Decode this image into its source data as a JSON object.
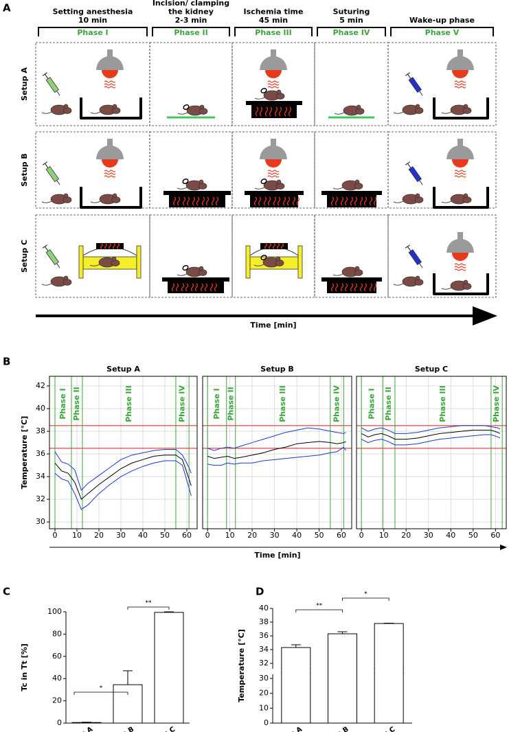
{
  "panel_a": {
    "label": "A",
    "columns": [
      {
        "header": [
          "Setting anesthesia",
          "10 min"
        ],
        "phase": "Phase I"
      },
      {
        "header": [
          "Incision/ clamping",
          "the kidney",
          "2-3 min"
        ],
        "phase": "Phase II"
      },
      {
        "header": [
          "Ischemia time",
          "45 min"
        ],
        "phase": "Phase III"
      },
      {
        "header": [
          "Suturing",
          "5 min"
        ],
        "phase": "Phase IV"
      },
      {
        "header": [
          "Wake-up phase"
        ],
        "phase": "Phase V"
      }
    ],
    "rows": [
      "Setup A",
      "Setup B",
      "Setup C"
    ],
    "time_label": "Time [min]"
  },
  "panel_b": {
    "label": "B",
    "x_label": "Time [min]",
    "y_label": "Temperature [°C]"
  },
  "chart_data": [
    {
      "type": "line",
      "title": "Setup A",
      "x": [
        0,
        3,
        6,
        9,
        12,
        15,
        20,
        25,
        30,
        35,
        40,
        45,
        50,
        55,
        58,
        61,
        62
      ],
      "xlim": [
        -2.5,
        64.7
      ],
      "xticks": [
        0,
        10,
        20,
        30,
        40,
        50,
        60
      ],
      "ylim": [
        29.4,
        42.85
      ],
      "yticks": [
        30,
        32,
        34,
        36,
        38,
        40,
        42
      ],
      "show_ytick_labels": true,
      "grid": true,
      "reference_lines": [
        36.5,
        38.5
      ],
      "reference_color": "#e8322b",
      "phase_lines": [
        0,
        7.5,
        12.5,
        55,
        61
      ],
      "phase_labels": [
        "Phase I",
        "Phase II",
        "Phase III",
        "Phase IV"
      ],
      "phase_color": "#3aa63a",
      "series": [
        {
          "color": "#000000",
          "values": [
            35.2,
            34.5,
            34.3,
            33.5,
            32,
            32.5,
            33.3,
            34,
            34.7,
            35.2,
            35.5,
            35.8,
            35.9,
            35.9,
            35.5,
            33.8,
            33.2
          ]
        },
        {
          "color": "#1a35d6",
          "values": [
            36.2,
            35.3,
            35.1,
            34.6,
            32.8,
            33.4,
            34.1,
            34.8,
            35.5,
            35.9,
            36.1,
            36.3,
            36.4,
            36.4,
            35.9,
            34.8,
            34.3
          ]
        },
        {
          "color": "#1a35d6",
          "values": [
            34.3,
            33.8,
            33.6,
            32.5,
            31.1,
            31.5,
            32.5,
            33.3,
            34,
            34.5,
            34.9,
            35.2,
            35.4,
            35.4,
            35,
            33,
            32.3
          ]
        }
      ]
    },
    {
      "type": "line",
      "title": "Setup B",
      "x": [
        0,
        3,
        6,
        9,
        12,
        15,
        20,
        25,
        30,
        35,
        40,
        45,
        50,
        55,
        58,
        61,
        62
      ],
      "xlim": [
        -2.2,
        64.6
      ],
      "xticks": [
        0,
        10,
        20,
        30,
        40,
        50,
        60
      ],
      "ylim": [
        29.4,
        42.85
      ],
      "yticks": [
        30,
        32,
        34,
        36,
        38,
        40,
        42
      ],
      "show_ytick_labels": false,
      "grid": true,
      "reference_lines": [
        36.5,
        38.5
      ],
      "reference_color": "#e8322b",
      "phase_lines": [
        0,
        8.5,
        12.5,
        55,
        61
      ],
      "phase_labels": [
        "Phase I",
        "Phase II",
        "Phase III",
        "Phase IV"
      ],
      "phase_color": "#3aa63a",
      "series": [
        {
          "color": "#000000",
          "values": [
            35.8,
            35.6,
            35.7,
            35.8,
            35.6,
            35.7,
            35.9,
            36.1,
            36.4,
            36.6,
            36.9,
            37,
            37.1,
            37,
            36.9,
            37,
            37.1
          ]
        },
        {
          "color": "#1a35d6",
          "values": [
            36.5,
            36.3,
            36.5,
            36.6,
            36.5,
            36.7,
            37,
            37.3,
            37.6,
            37.9,
            38.1,
            38.3,
            38.2,
            38,
            37.9,
            37.8,
            37.9
          ]
        },
        {
          "color": "#1a35d6",
          "values": [
            35.1,
            35,
            35,
            35.2,
            35.1,
            35.2,
            35.2,
            35.4,
            35.5,
            35.6,
            35.7,
            35.8,
            35.9,
            36.1,
            36.2,
            36.6,
            36.3
          ]
        }
      ]
    },
    {
      "type": "line",
      "title": "Setup C",
      "x": [
        0,
        3,
        6,
        9,
        12,
        15,
        20,
        25,
        30,
        35,
        40,
        45,
        50,
        55,
        58,
        61,
        62
      ],
      "xlim": [
        -2.2,
        64.8
      ],
      "xticks": [
        0,
        10,
        20,
        30,
        40,
        50,
        60
      ],
      "ylim": [
        29.4,
        42.85
      ],
      "yticks": [
        30,
        32,
        34,
        36,
        38,
        40,
        42
      ],
      "show_ytick_labels": false,
      "grid": true,
      "reference_lines": [
        36.5,
        38.5
      ],
      "reference_color": "#e8322b",
      "phase_lines": [
        0,
        9.5,
        15,
        58,
        63
      ],
      "phase_labels": [
        "Phase I",
        "Phase II",
        "Phase III",
        "Phase IV"
      ],
      "phase_color": "#3aa63a",
      "series": [
        {
          "color": "#000000",
          "values": [
            37.8,
            37.5,
            37.7,
            37.8,
            37.6,
            37.3,
            37.3,
            37.4,
            37.6,
            37.8,
            37.9,
            38,
            38.1,
            38.1,
            38.1,
            37.9,
            37.8
          ]
        },
        {
          "color": "#1a35d6",
          "values": [
            38.3,
            38,
            38.2,
            38.3,
            38.1,
            37.8,
            37.8,
            37.9,
            38.1,
            38.3,
            38.4,
            38.5,
            38.5,
            38.5,
            38.4,
            38.3,
            38.2
          ]
        },
        {
          "color": "#1a35d6",
          "values": [
            37.3,
            37,
            37.2,
            37.3,
            37.1,
            36.8,
            36.8,
            36.9,
            37.1,
            37.3,
            37.4,
            37.5,
            37.6,
            37.7,
            37.7,
            37.5,
            37.4
          ]
        }
      ]
    },
    {
      "type": "bar",
      "label": "C",
      "y_label": "Tc in Tt [%]",
      "categories": [
        "Setup A",
        "Setup B",
        "Setup C"
      ],
      "values": [
        0.5,
        34.5,
        99.5
      ],
      "errors": [
        0.3,
        12.5,
        0.5
      ],
      "color": "#ffffff",
      "ylim": [
        0,
        100
      ],
      "yticks": [
        0,
        20,
        40,
        60,
        80,
        100
      ],
      "annotations": [
        "*",
        "**"
      ]
    },
    {
      "type": "bar",
      "label": "D",
      "y_label": "Temperature [°C]",
      "categories": [
        "Setup A",
        "Setup B",
        "Setup C"
      ],
      "values": [
        34.3,
        36.3,
        37.8
      ],
      "errors": [
        0.4,
        0.3,
        0.05
      ],
      "color": "#ffffff",
      "ylim": [
        0,
        40
      ],
      "ybreak": [
        30,
        32
      ],
      "yticks": [
        0,
        10,
        20,
        30,
        32,
        34,
        36,
        38,
        40
      ],
      "annotations": [
        "**",
        "*"
      ]
    }
  ]
}
